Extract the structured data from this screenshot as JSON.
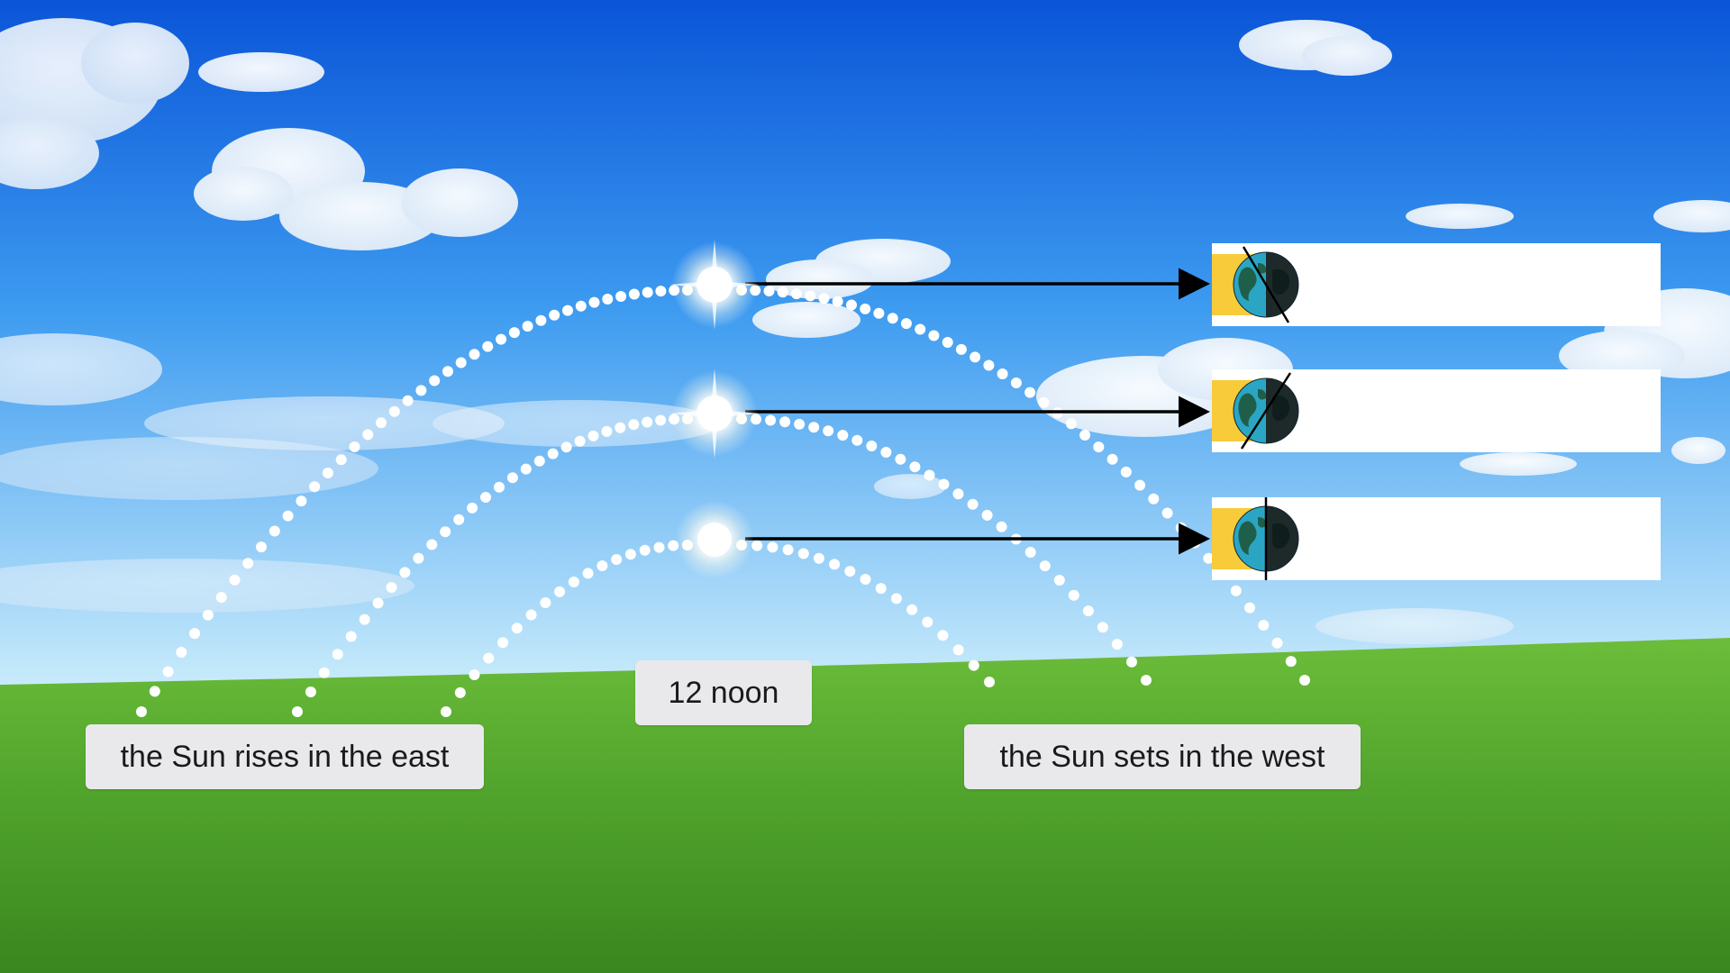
{
  "labels": {
    "sunrise": "the Sun rises in the east",
    "noon": "12 noon",
    "sunset": "the Sun sets in the west"
  },
  "paths": [
    {
      "name": "summer-path",
      "panel": "answer-panel-1"
    },
    {
      "name": "equinox-path",
      "panel": "answer-panel-2"
    },
    {
      "name": "winter-path",
      "panel": "answer-panel-3"
    }
  ],
  "panels": [
    {
      "text": "",
      "earth_tilt": "tilted-toward-sun"
    },
    {
      "text": "",
      "earth_tilt": "tilted-away-from-sun"
    },
    {
      "text": "",
      "earth_tilt": "upright"
    }
  ],
  "icons": {
    "sun": "sun-icon",
    "earth": "earth-globe-icon",
    "arrow": "arrow-right-icon"
  },
  "colors": {
    "sky_top": "#0a5fe0",
    "sky_bottom": "#bfe6fb",
    "grass_top": "#5cb033",
    "grass_bottom": "#3e8e23",
    "sun_band": "#f7cb3a",
    "ocean": "#2aa6c4",
    "land": "#1f5f4a",
    "night_side": "#1e2a2a",
    "label_bg": "#e9e9ec",
    "arrow": "#000000",
    "dots": "#ffffff"
  }
}
